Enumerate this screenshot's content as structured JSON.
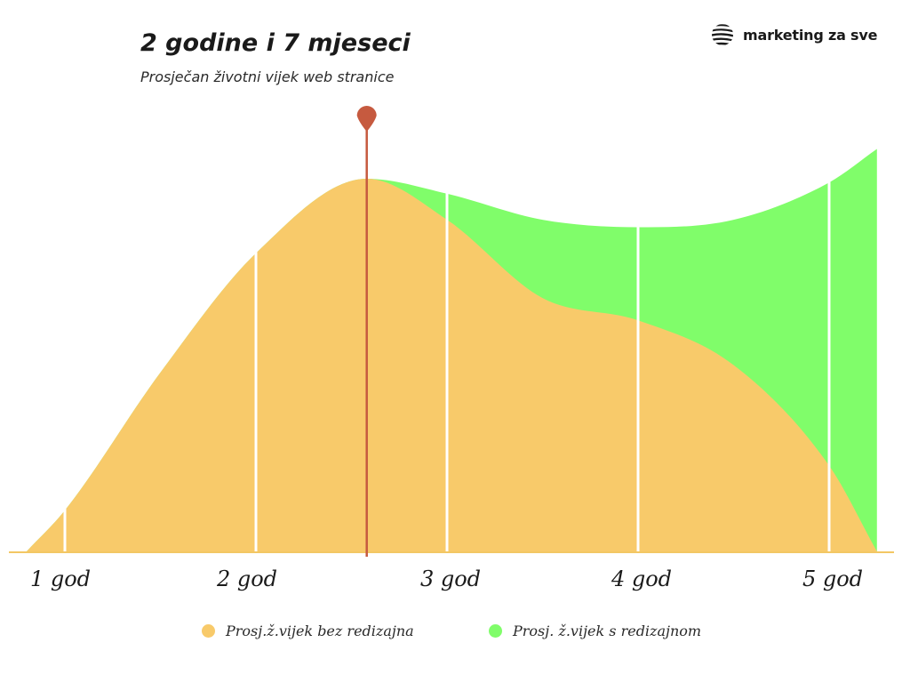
{
  "brand": {
    "name": "marketing za sve",
    "icon": "striped-globe-logo-icon"
  },
  "chart_data": {
    "type": "area",
    "title": "2 godine i 7 mjeseci",
    "subtitle": "Prosječan životni vijek web stranice",
    "x_ticks": [
      "1 god",
      "2 god",
      "3 god",
      "4 god",
      "5 god"
    ],
    "xlim": [
      0.8,
      5.3
    ],
    "ylim": [
      0,
      1.0
    ],
    "grid": "vertical-at-ticks",
    "marker": {
      "x": 2.58,
      "type": "pin",
      "color": "#c65a3f"
    },
    "legend_position": "bottom",
    "series": [
      {
        "name": "Prosj.ž.vijek bez redizajna",
        "color": "#f8ca6a",
        "x": [
          0.8,
          1.0,
          1.5,
          2.0,
          2.58,
          3.0,
          3.5,
          4.0,
          4.5,
          5.0,
          5.25
        ],
        "y": [
          0.0,
          0.11,
          0.48,
          0.8,
          1.0,
          0.89,
          0.68,
          0.62,
          0.5,
          0.23,
          0.0
        ]
      },
      {
        "name": "Prosj. ž.vijek s redizajnom",
        "color": "#80fd6a",
        "x": [
          0.8,
          1.0,
          1.5,
          2.0,
          2.58,
          3.0,
          3.5,
          4.0,
          4.5,
          5.0,
          5.25
        ],
        "y": [
          0.0,
          0.11,
          0.48,
          0.8,
          1.0,
          0.96,
          0.89,
          0.87,
          0.89,
          0.99,
          1.08
        ]
      }
    ]
  }
}
